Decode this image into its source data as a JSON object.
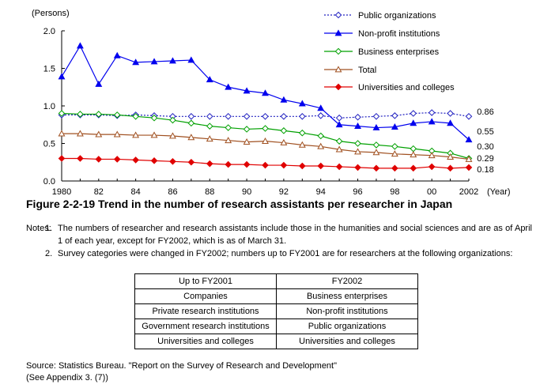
{
  "chart_data": {
    "type": "line",
    "ylabel": "(Persons)",
    "xlabel": "(Year)",
    "ylim": [
      0,
      2.0
    ],
    "yticks": [
      "0.0",
      "0.5",
      "1.0",
      "1.5",
      "2.0"
    ],
    "x": [
      1980,
      1981,
      1982,
      1983,
      1984,
      1985,
      1986,
      1987,
      1988,
      1989,
      1990,
      1991,
      1992,
      1993,
      1994,
      1995,
      1996,
      1997,
      1998,
      1999,
      2000,
      2001,
      2002
    ],
    "xticks": [
      {
        "year": 1980,
        "label": "1980"
      },
      {
        "year": 1982,
        "label": "82"
      },
      {
        "year": 1984,
        "label": "84"
      },
      {
        "year": 1986,
        "label": "86"
      },
      {
        "year": 1988,
        "label": "88"
      },
      {
        "year": 1990,
        "label": "90"
      },
      {
        "year": 1992,
        "label": "92"
      },
      {
        "year": 1994,
        "label": "94"
      },
      {
        "year": 1996,
        "label": "96"
      },
      {
        "year": 1998,
        "label": "98"
      },
      {
        "year": 2000,
        "label": "00"
      },
      {
        "year": 2002,
        "label": "2002"
      }
    ],
    "series": [
      {
        "name": "Public organizations",
        "color": "#2020c0",
        "marker": "diamond-open",
        "dash": true,
        "values": [
          0.88,
          0.88,
          0.88,
          0.87,
          0.88,
          0.87,
          0.86,
          0.86,
          0.86,
          0.86,
          0.86,
          0.86,
          0.86,
          0.86,
          0.87,
          0.84,
          0.85,
          0.86,
          0.87,
          0.9,
          0.91,
          0.9,
          0.86
        ],
        "end_label": "0.86"
      },
      {
        "name": "Non-profit institutions",
        "color": "#0000ee",
        "marker": "triangle",
        "values": [
          1.39,
          1.8,
          1.29,
          1.67,
          1.58,
          1.59,
          1.6,
          1.61,
          1.35,
          1.25,
          1.2,
          1.17,
          1.08,
          1.03,
          0.97,
          0.75,
          0.73,
          0.71,
          0.72,
          0.77,
          0.79,
          0.77,
          0.55
        ],
        "end_label": "0.55"
      },
      {
        "name": "Business enterprises",
        "color": "#00a000",
        "marker": "diamond-open",
        "values": [
          0.9,
          0.89,
          0.89,
          0.88,
          0.86,
          0.84,
          0.81,
          0.77,
          0.73,
          0.71,
          0.69,
          0.7,
          0.67,
          0.64,
          0.6,
          0.53,
          0.5,
          0.48,
          0.46,
          0.43,
          0.4,
          0.37,
          0.3
        ],
        "end_label": "0.30"
      },
      {
        "name": "Total",
        "color": "#a05020",
        "marker": "triangle-open",
        "values": [
          0.63,
          0.63,
          0.62,
          0.62,
          0.61,
          0.61,
          0.6,
          0.58,
          0.56,
          0.54,
          0.52,
          0.53,
          0.51,
          0.48,
          0.46,
          0.42,
          0.39,
          0.38,
          0.36,
          0.35,
          0.34,
          0.32,
          0.29
        ],
        "end_label": "0.29"
      },
      {
        "name": "Universities and colleges",
        "color": "#e00000",
        "marker": "diamond",
        "values": [
          0.3,
          0.3,
          0.29,
          0.29,
          0.28,
          0.27,
          0.26,
          0.25,
          0.23,
          0.22,
          0.22,
          0.21,
          0.21,
          0.2,
          0.2,
          0.19,
          0.18,
          0.17,
          0.17,
          0.17,
          0.19,
          0.17,
          0.18
        ],
        "end_label": "0.18"
      }
    ]
  },
  "figure": {
    "title": "Figure 2-2-19  Trend in the number of research assistants per researcher in Japan"
  },
  "notes": {
    "label": "Notes:",
    "note1_num": "1.",
    "note1_text": "The numbers of researcher and research assistants include those in the humanities and social sciences and are as of April 1 of each year, except for FY2002, which is as of March 31.",
    "note2_num": "2.",
    "note2_text": "Survey categories were changed in FY2002; numbers up to FY2001 are for researchers at the following organizations:"
  },
  "category_table": {
    "headers": [
      "Up to FY2001",
      "FY2002"
    ],
    "rows": [
      [
        "Companies",
        "Business enterprises"
      ],
      [
        "Private research institutions",
        "Non-profit institutions"
      ],
      [
        "Government research institutions",
        "Public organizations"
      ],
      [
        "Universities and colleges",
        "Universities and colleges"
      ]
    ]
  },
  "source": {
    "line1": "Source: Statistics Bureau. \"Report on the Survey of Research and Development\"",
    "line2": "(See Appendix 3. (7))"
  }
}
